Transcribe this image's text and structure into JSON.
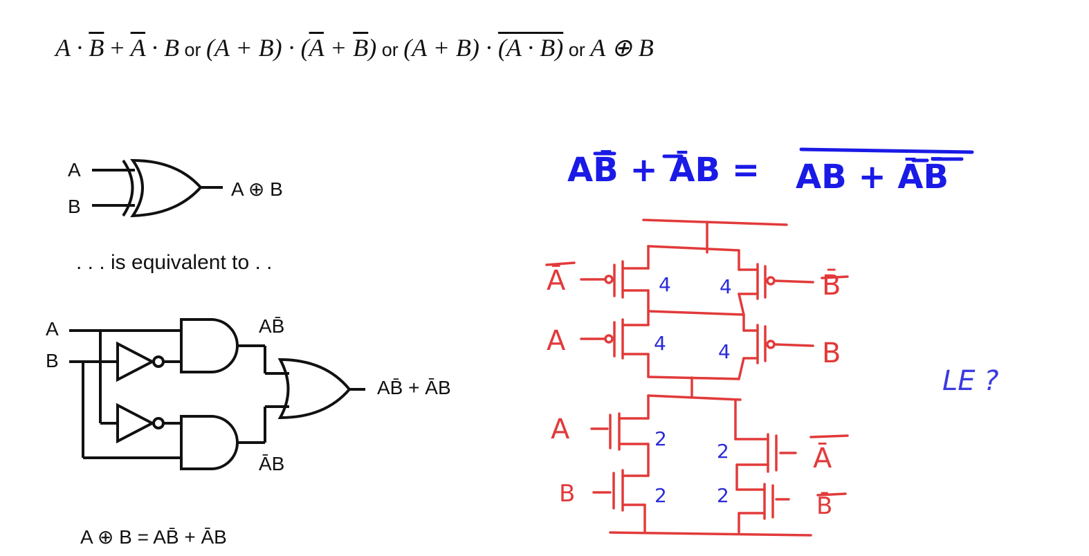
{
  "formula": {
    "t1": "A · ",
    "t1b": "B",
    "t2": " + ",
    "t2a": "A",
    "t2b": " · B",
    "or1": " or ",
    "t3": "(A + B) · (",
    "t3a": "A",
    "t3p": " + ",
    "t3b": "B",
    "t3c": ")",
    "or2": " or ",
    "t4": "(A + B) · ",
    "t4a": "(A · B)",
    "or3": " or ",
    "t5": "A ⊕ B"
  },
  "xor_gate": {
    "in_a": "A",
    "in_b": "B",
    "out": "A ⊕ B"
  },
  "equiv_text": ". . . is equivalent to . .",
  "circuit": {
    "in_a": "A",
    "in_b": "B",
    "and1_out": "AB̄",
    "and2_out": "ĀB",
    "or_out": "AB̄ + ĀB"
  },
  "bottom_eq": "A ⊕ B  =  AB̄ + ĀB",
  "blue_eq": {
    "lhs": "AB̄ + ĀB =",
    "rhs": "AB + ĀB̄"
  },
  "transistor_labels": {
    "left": [
      "Ā",
      "A",
      "A",
      "B"
    ],
    "right": [
      "B̄",
      "B",
      "Ā",
      "B̄"
    ],
    "sizes_left": [
      "4",
      "4",
      "2",
      "2"
    ],
    "sizes_right": [
      "4",
      "4",
      "2",
      "2"
    ]
  },
  "le_text": "LE ?",
  "colors": {
    "red": "#e23a3a",
    "blue": "#1a1ae6",
    "black": "#111111"
  }
}
